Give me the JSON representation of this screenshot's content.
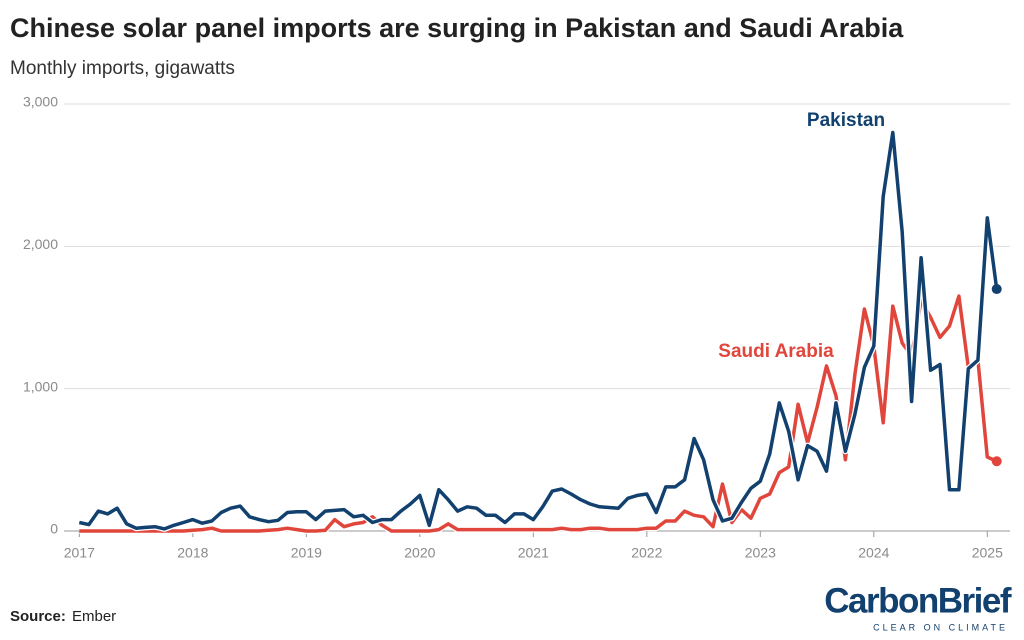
{
  "chart_data": {
    "type": "line",
    "title": "Chinese solar panel imports are surging in Pakistan and Saudi Arabia",
    "subtitle": "Monthly imports, gigawatts",
    "source_label": "Source:",
    "source": "Ember",
    "logo": "CarbonBrief",
    "logo_tagline": "CLEAR ON CLIMATE",
    "x": [
      2017,
      2017.083,
      2017.167,
      2017.25,
      2017.333,
      2017.417,
      2017.5,
      2017.583,
      2017.667,
      2017.75,
      2017.833,
      2017.917,
      2018,
      2018.083,
      2018.167,
      2018.25,
      2018.333,
      2018.417,
      2018.5,
      2018.583,
      2018.667,
      2018.75,
      2018.833,
      2018.917,
      2019,
      2019.083,
      2019.167,
      2019.25,
      2019.333,
      2019.417,
      2019.5,
      2019.583,
      2019.667,
      2019.75,
      2019.833,
      2019.917,
      2020,
      2020.083,
      2020.167,
      2020.25,
      2020.333,
      2020.417,
      2020.5,
      2020.583,
      2020.667,
      2020.75,
      2020.833,
      2020.917,
      2021,
      2021.083,
      2021.167,
      2021.25,
      2021.333,
      2021.417,
      2021.5,
      2021.583,
      2021.667,
      2021.75,
      2021.833,
      2021.917,
      2022,
      2022.083,
      2022.167,
      2022.25,
      2022.333,
      2022.417,
      2022.5,
      2022.583,
      2022.667,
      2022.75,
      2022.833,
      2022.917,
      2023,
      2023.083,
      2023.167,
      2023.25,
      2023.333,
      2023.417,
      2023.5,
      2023.583,
      2023.667,
      2023.75,
      2023.833,
      2023.917,
      2024,
      2024.083,
      2024.167,
      2024.25,
      2024.333,
      2024.417,
      2024.5,
      2024.583,
      2024.667,
      2024.75,
      2024.833,
      2024.917,
      2025,
      2025.083
    ],
    "series": [
      {
        "name": "Saudi Arabia",
        "color": "#e0463c",
        "values": [
          0,
          0,
          0,
          0,
          0,
          0,
          0,
          0,
          0,
          0,
          0,
          0,
          5,
          10,
          20,
          0,
          0,
          0,
          0,
          0,
          5,
          10,
          20,
          10,
          0,
          0,
          5,
          80,
          30,
          50,
          60,
          100,
          40,
          0,
          0,
          0,
          0,
          0,
          10,
          50,
          10,
          10,
          10,
          10,
          10,
          10,
          10,
          10,
          10,
          10,
          10,
          20,
          10,
          10,
          20,
          20,
          10,
          10,
          10,
          10,
          20,
          20,
          70,
          70,
          140,
          110,
          100,
          30,
          330,
          60,
          150,
          90,
          230,
          260,
          410,
          450,
          890,
          620,
          870,
          1160,
          950,
          500,
          1100,
          1560,
          1300,
          760,
          1580,
          1320,
          1230,
          1620,
          1500,
          1360,
          1440,
          1650,
          1150,
          1200,
          520,
          490
        ]
      },
      {
        "name": "Pakistan",
        "color": "#12416f",
        "values": [
          60,
          45,
          140,
          120,
          160,
          50,
          20,
          25,
          30,
          15,
          40,
          60,
          80,
          55,
          70,
          130,
          160,
          175,
          100,
          80,
          65,
          75,
          130,
          135,
          135,
          80,
          140,
          145,
          150,
          100,
          110,
          60,
          80,
          80,
          140,
          190,
          250,
          40,
          290,
          220,
          140,
          170,
          160,
          110,
          110,
          60,
          120,
          120,
          80,
          170,
          280,
          295,
          260,
          220,
          190,
          170,
          165,
          160,
          230,
          250,
          260,
          130,
          310,
          310,
          360,
          650,
          500,
          220,
          70,
          90,
          200,
          300,
          350,
          540,
          900,
          700,
          360,
          600,
          560,
          420,
          900,
          560,
          820,
          1150,
          1300,
          2350,
          2800,
          2100,
          910,
          1920,
          1130,
          1170,
          290,
          290,
          1140,
          1200,
          2200,
          1700
        ]
      }
    ],
    "xlim": [
      2016.9,
      2025.2
    ],
    "xticks": [
      2017,
      2018,
      2019,
      2020,
      2021,
      2022,
      2023,
      2024,
      2025
    ],
    "ylim": [
      0,
      3000
    ],
    "yticks": [
      0,
      {
        "value": 1000,
        "label": "1,000"
      },
      {
        "value": 2000,
        "label": "2,000"
      },
      {
        "value": 3000,
        "label": "3,000"
      }
    ],
    "grid": true
  }
}
